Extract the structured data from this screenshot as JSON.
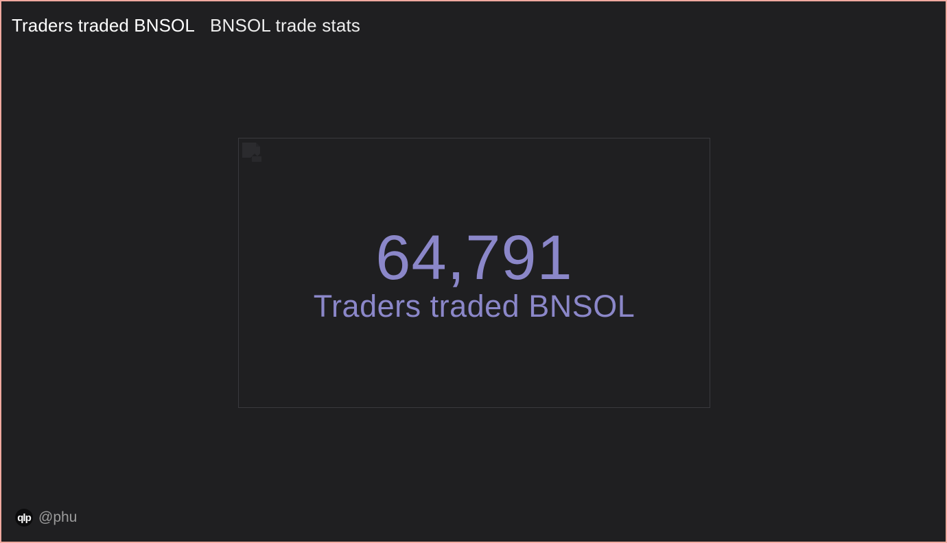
{
  "header": {
    "title": "Traders traded BNSOL",
    "subtitle": "BNSOL trade stats"
  },
  "counter": {
    "value": "64,791",
    "label": "Traders traded BNSOL",
    "value_color": "#8b87c9"
  },
  "footer": {
    "logo_text": "qlp",
    "author": "@phu"
  },
  "colors": {
    "background": "#1f1f21",
    "frame_border": "#f0a9a0",
    "card_border": "#3a3a3e"
  },
  "icons": {
    "broken_image": "broken-image-icon"
  }
}
